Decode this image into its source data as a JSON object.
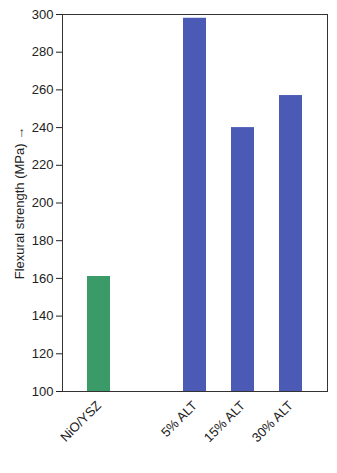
{
  "chart_data": {
    "type": "bar",
    "y_label": "Flexural strength (MPa)",
    "categories": [
      "NiO/YSZ",
      null,
      "5% ALT",
      "15% ALT",
      "30% ALT"
    ],
    "values": [
      161,
      null,
      298,
      240,
      257
    ],
    "colors": [
      "#3a9a68",
      null,
      "#4a5ab5",
      "#4a5ab5",
      "#4a5ab5"
    ],
    "ylim": [
      100,
      300
    ],
    "yticks": [
      100,
      120,
      140,
      160,
      180,
      200,
      220,
      240,
      260,
      280,
      300
    ],
    "grid": false
  }
}
